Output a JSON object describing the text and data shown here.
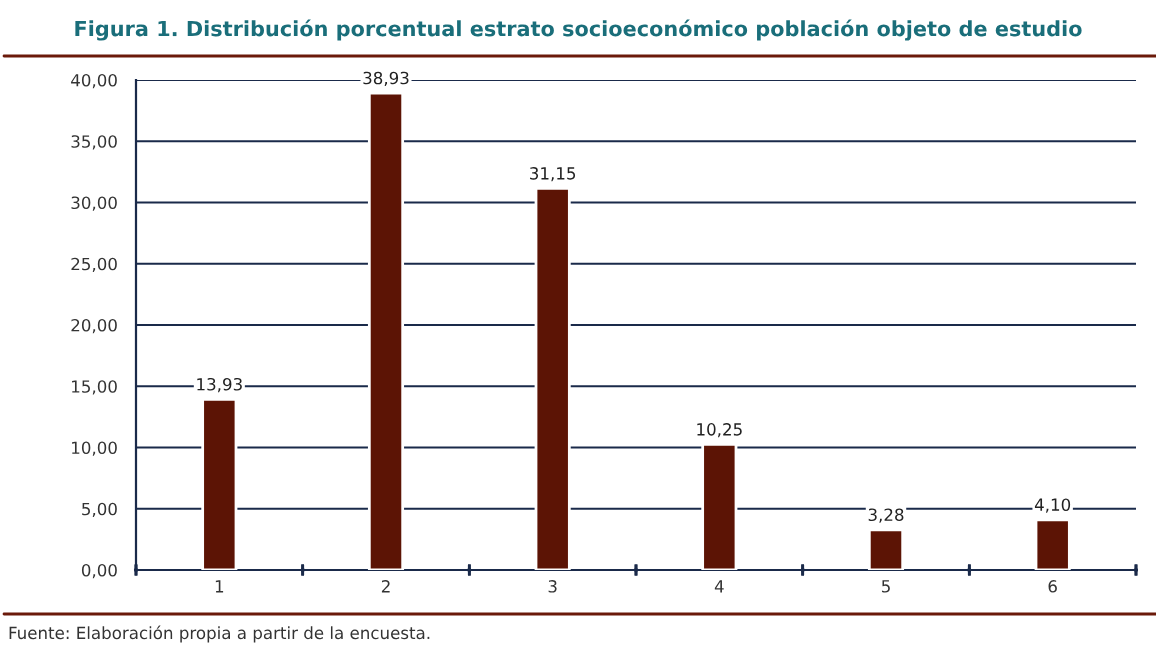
{
  "chart_data": {
    "type": "bar",
    "title": "Figura 1. Distribución porcentual estrato socioeconómico población objeto de estudio",
    "categories": [
      "1",
      "2",
      "3",
      "4",
      "5",
      "6"
    ],
    "values": [
      13.93,
      38.93,
      31.15,
      10.25,
      3.28,
      4.1
    ],
    "value_labels": [
      "13,93",
      "38,93",
      "31,15",
      "10,25",
      "3,28",
      "4,10"
    ],
    "color": "#5c1405",
    "ylim": [
      0,
      40
    ],
    "yticks": [
      {
        "value": 0,
        "label": "0,00"
      },
      {
        "value": 5,
        "label": "5,00"
      },
      {
        "value": 10,
        "label": "10,00"
      },
      {
        "value": 15,
        "label": "15,00"
      },
      {
        "value": 20,
        "label": "20,00"
      },
      {
        "value": 25,
        "label": "25,00"
      },
      {
        "value": 30,
        "label": "30,00"
      },
      {
        "value": 35,
        "label": "35,00"
      },
      {
        "value": 40,
        "label": "40,00"
      }
    ],
    "grid": "y",
    "annotations": [
      "Fuente: Elaboración propia a partir de la encuesta."
    ]
  }
}
